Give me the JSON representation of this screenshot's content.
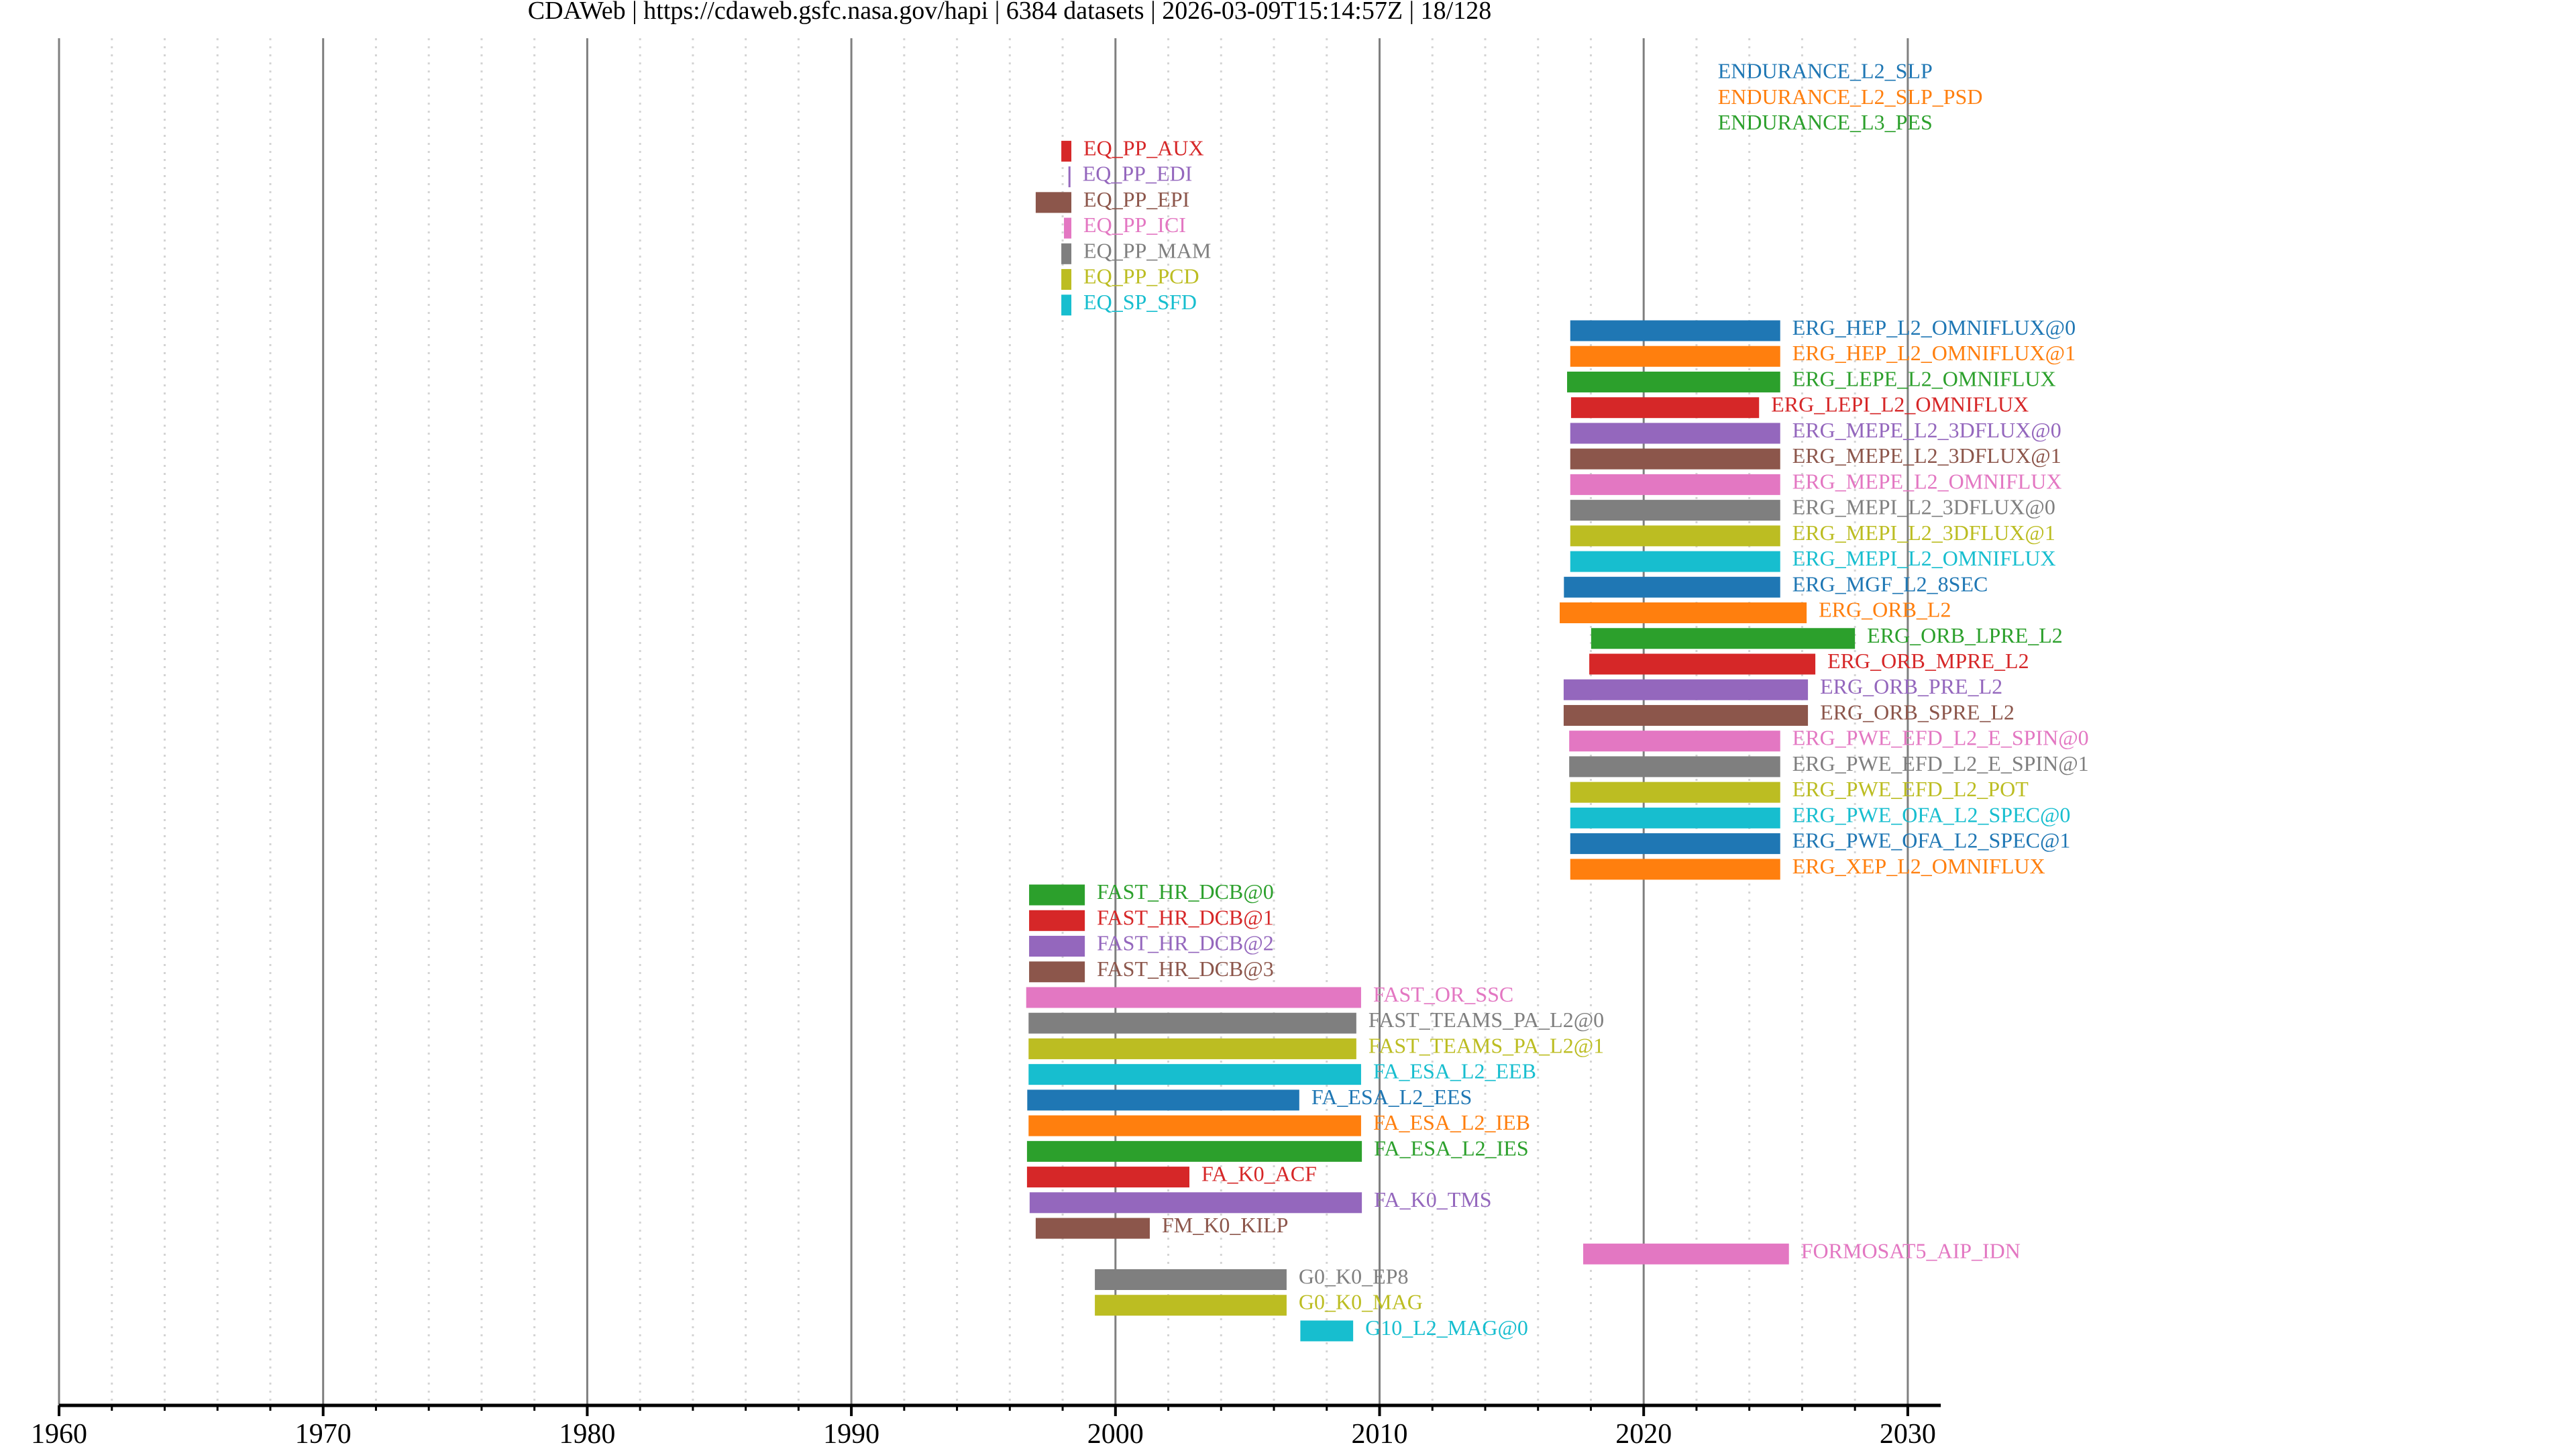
{
  "page": {
    "title": "CDAWeb | https://cdaweb.gsfc.nasa.gov/hapi | 6384 datasets | 2026-03-09T15:14:57Z | 18/128"
  },
  "chart_data": {
    "type": "bar",
    "orientation": "horizontal-timeline",
    "title": "CDAWeb | https://cdaweb.gsfc.nasa.gov/hapi | 6384 datasets | 2026-03-09T15:14:57Z | 18/128",
    "xlabel": "",
    "ylabel": "",
    "xlim": [
      1960,
      2031.25
    ],
    "x_major_ticks": [
      1960,
      1970,
      1980,
      1990,
      2000,
      2010,
      2020,
      2030
    ],
    "x_tick_labels": [
      "1960",
      "1970",
      "1980",
      "1990",
      "2000",
      "2010",
      "2020",
      "2030"
    ],
    "x_minor_step": 2,
    "grid": true,
    "legend": "none (labels beside bars)",
    "palette": [
      "#1f77b4",
      "#ff7f0e",
      "#2ca02c",
      "#d62728",
      "#9467bd",
      "#8c564b",
      "#e377c2",
      "#7f7f7f",
      "#bcbd22",
      "#17becf"
    ],
    "datasets": [
      {
        "name": "ENDURANCE_L2_SLP",
        "start": 2022.35,
        "stop": 2022.35
      },
      {
        "name": "ENDURANCE_L2_SLP_PSD",
        "start": 2022.35,
        "stop": 2022.35
      },
      {
        "name": "ENDURANCE_L3_PES",
        "start": 2022.35,
        "stop": 2022.35
      },
      {
        "name": "EQ_PP_AUX",
        "start": 1997.95,
        "stop": 1998.33
      },
      {
        "name": "EQ_PP_EDI",
        "start": 1998.22,
        "stop": 1998.28
      },
      {
        "name": "EQ_PP_EPI",
        "start": 1996.98,
        "stop": 1998.33
      },
      {
        "name": "EQ_PP_ICI",
        "start": 1998.05,
        "stop": 1998.33
      },
      {
        "name": "EQ_PP_MAM",
        "start": 1997.95,
        "stop": 1998.33
      },
      {
        "name": "EQ_PP_PCD",
        "start": 1997.95,
        "stop": 1998.33
      },
      {
        "name": "EQ_SP_SFD",
        "start": 1997.95,
        "stop": 1998.33
      },
      {
        "name": "ERG_HEP_L2_OMNIFLUX@0",
        "start": 2017.22,
        "stop": 2025.17
      },
      {
        "name": "ERG_HEP_L2_OMNIFLUX@1",
        "start": 2017.22,
        "stop": 2025.17
      },
      {
        "name": "ERG_LEPE_L2_OMNIFLUX",
        "start": 2017.1,
        "stop": 2025.17
      },
      {
        "name": "ERG_LEPI_L2_OMNIFLUX",
        "start": 2017.25,
        "stop": 2024.37
      },
      {
        "name": "ERG_MEPE_L2_3DFLUX@0",
        "start": 2017.22,
        "stop": 2025.17
      },
      {
        "name": "ERG_MEPE_L2_3DFLUX@1",
        "start": 2017.22,
        "stop": 2025.17
      },
      {
        "name": "ERG_MEPE_L2_OMNIFLUX",
        "start": 2017.22,
        "stop": 2025.17
      },
      {
        "name": "ERG_MEPI_L2_3DFLUX@0",
        "start": 2017.22,
        "stop": 2025.17
      },
      {
        "name": "ERG_MEPI_L2_3DFLUX@1",
        "start": 2017.22,
        "stop": 2025.17
      },
      {
        "name": "ERG_MEPI_L2_OMNIFLUX",
        "start": 2017.22,
        "stop": 2025.17
      },
      {
        "name": "ERG_MGF_L2_8SEC",
        "start": 2016.98,
        "stop": 2025.17
      },
      {
        "name": "ERG_ORB_L2",
        "start": 2016.82,
        "stop": 2026.17
      },
      {
        "name": "ERG_ORB_LPRE_L2",
        "start": 2018.01,
        "stop": 2028.0
      },
      {
        "name": "ERG_ORB_MPRE_L2",
        "start": 2017.94,
        "stop": 2026.5
      },
      {
        "name": "ERG_ORB_PRE_L2",
        "start": 2016.97,
        "stop": 2026.22
      },
      {
        "name": "ERG_ORB_SPRE_L2",
        "start": 2016.97,
        "stop": 2026.22
      },
      {
        "name": "ERG_PWE_EFD_L2_E_SPIN@0",
        "start": 2017.18,
        "stop": 2025.17
      },
      {
        "name": "ERG_PWE_EFD_L2_E_SPIN@1",
        "start": 2017.18,
        "stop": 2025.17
      },
      {
        "name": "ERG_PWE_EFD_L2_POT",
        "start": 2017.22,
        "stop": 2025.17
      },
      {
        "name": "ERG_PWE_OFA_L2_SPEC@0",
        "start": 2017.22,
        "stop": 2025.17
      },
      {
        "name": "ERG_PWE_OFA_L2_SPEC@1",
        "start": 2017.22,
        "stop": 2025.17
      },
      {
        "name": "ERG_XEP_L2_OMNIFLUX",
        "start": 2017.22,
        "stop": 2025.17
      },
      {
        "name": "FAST_HR_DCB@0",
        "start": 1996.73,
        "stop": 1998.84
      },
      {
        "name": "FAST_HR_DCB@1",
        "start": 1996.73,
        "stop": 1998.84
      },
      {
        "name": "FAST_HR_DCB@2",
        "start": 1996.73,
        "stop": 1998.84
      },
      {
        "name": "FAST_HR_DCB@3",
        "start": 1996.73,
        "stop": 1998.84
      },
      {
        "name": "FAST_OR_SSC",
        "start": 1996.62,
        "stop": 2009.3
      },
      {
        "name": "FAST_TEAMS_PA_L2@0",
        "start": 1996.71,
        "stop": 2009.12
      },
      {
        "name": "FAST_TEAMS_PA_L2@1",
        "start": 1996.71,
        "stop": 2009.12
      },
      {
        "name": "FA_ESA_L2_EEB",
        "start": 1996.71,
        "stop": 2009.3
      },
      {
        "name": "FA_ESA_L2_EES",
        "start": 1996.66,
        "stop": 2006.96
      },
      {
        "name": "FA_ESA_L2_IEB",
        "start": 1996.71,
        "stop": 2009.3
      },
      {
        "name": "FA_ESA_L2_IES",
        "start": 1996.65,
        "stop": 2009.33
      },
      {
        "name": "FA_K0_ACF",
        "start": 1996.65,
        "stop": 2002.8
      },
      {
        "name": "FA_K0_TMS",
        "start": 1996.75,
        "stop": 2009.33
      },
      {
        "name": "FM_K0_KILP",
        "start": 1996.98,
        "stop": 2001.3
      },
      {
        "name": "FORMOSAT5_AIP_IDN",
        "start": 2017.71,
        "stop": 2025.5
      },
      {
        "name": "G0_K0_EP8",
        "start": 1999.22,
        "stop": 2006.48
      },
      {
        "name": "G0_K0_MAG",
        "start": 1999.22,
        "stop": 2006.48
      },
      {
        "name": "G10_L2_MAG@0",
        "start": 2007.0,
        "stop": 2009.0
      }
    ]
  }
}
